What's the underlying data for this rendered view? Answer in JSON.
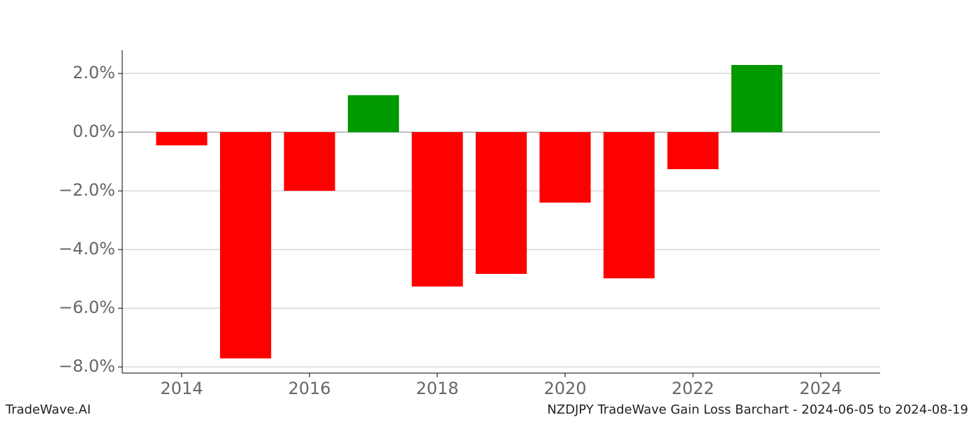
{
  "chart_data": {
    "type": "bar",
    "title": "NZDJPY TradeWave Gain Loss Barchart - 2024-06-05 to 2024-08-19",
    "watermark": "TradeWave.AI",
    "x": [
      2014,
      2015,
      2016,
      2017,
      2018,
      2019,
      2020,
      2021,
      2022,
      2023
    ],
    "values": [
      -0.45,
      -7.71,
      -2.0,
      1.26,
      -5.26,
      -4.83,
      -2.4,
      -4.98,
      -1.26,
      2.29
    ],
    "colors": [
      "#ff0000",
      "#ff0000",
      "#ff0000",
      "#009900",
      "#ff0000",
      "#ff0000",
      "#ff0000",
      "#ff0000",
      "#ff0000",
      "#009900"
    ],
    "bar_width": 0.8,
    "xlim": [
      2013.07,
      2024.93
    ],
    "xticks": [
      2014,
      2016,
      2018,
      2020,
      2022,
      2024
    ],
    "ylim": [
      -8.21,
      2.79
    ],
    "yticks": [
      {
        "value": 2,
        "label": "2.0%"
      },
      {
        "value": 0,
        "label": "0.0%"
      },
      {
        "value": -2,
        "label": "−2.0%"
      },
      {
        "value": -4,
        "label": "−4.0%"
      },
      {
        "value": -6,
        "label": "−6.0%"
      },
      {
        "value": -8,
        "label": "−8.0%"
      }
    ],
    "grid": true
  }
}
